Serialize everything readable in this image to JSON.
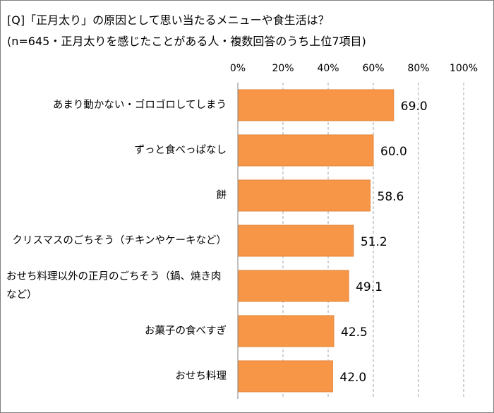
{
  "chart_data": {
    "type": "bar",
    "orientation": "horizontal",
    "title": "[Q]「正月太り」の原因として思い当たるメニューや食生活は？",
    "subtitle": "(n=645・正月太りを感じたことがある人・複数回答のうち上位7項目)",
    "categories": [
      "あまり動かない・ゴロゴロしてしまう",
      "ずっと食べっぱなし",
      "餅",
      "クリスマスのごちそう（チキンやケーキなど）",
      "おせち料理以外の正月のごちそう（鍋、焼き肉など）",
      "お菓子の食べすぎ",
      "おせち料理"
    ],
    "values": [
      69.0,
      60.0,
      58.6,
      51.2,
      49.1,
      42.5,
      42.0
    ],
    "value_labels": [
      "69.0",
      "60.0",
      "58.6",
      "51.2",
      "49.1",
      "42.5",
      "42.0"
    ],
    "color": "#f79646",
    "xlim": [
      0,
      100
    ],
    "xticks": [
      {
        "value": 0,
        "label": "0%"
      },
      {
        "value": 20,
        "label": "20%"
      },
      {
        "value": 40,
        "label": "40%"
      },
      {
        "value": 60,
        "label": "60%"
      },
      {
        "value": 80,
        "label": "80%"
      },
      {
        "value": 100,
        "label": "100%"
      }
    ],
    "grid": true
  }
}
